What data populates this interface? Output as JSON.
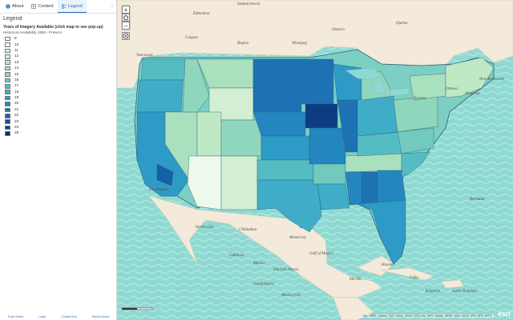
{
  "sidebar": {
    "tabs": [
      {
        "label": "About",
        "icon": "info-icon",
        "active": false
      },
      {
        "label": "Content",
        "icon": "layers-icon",
        "active": false
      },
      {
        "label": "Legend",
        "icon": "legend-icon",
        "active": true
      }
    ],
    "collapse_glyph": "‹",
    "legend_title": "Legend",
    "layer_title": "Years of Imagery Available (click map to see pop-up)",
    "layer_subtitle": "Historical Availability 1955 - Present",
    "legend_items": [
      {
        "label": "9",
        "color": "#f7fcf5"
      },
      {
        "label": "10",
        "color": "#eef9ec"
      },
      {
        "label": "11",
        "color": "#e1f4de"
      },
      {
        "label": "12",
        "color": "#d2efd1"
      },
      {
        "label": "13",
        "color": "#bfe8c4"
      },
      {
        "label": "14",
        "color": "#a9e0be"
      },
      {
        "label": "15",
        "color": "#8fd6bd"
      },
      {
        "label": "16",
        "color": "#72cabf"
      },
      {
        "label": "17",
        "color": "#56bcc4"
      },
      {
        "label": "18",
        "color": "#3fadc8"
      },
      {
        "label": "19",
        "color": "#2e9ac6"
      },
      {
        "label": "20",
        "color": "#2486bf"
      },
      {
        "label": "21",
        "color": "#1d72b4"
      },
      {
        "label": "22",
        "color": "#175fa6"
      },
      {
        "label": "23",
        "color": "#124d95"
      },
      {
        "label": "24",
        "color": "#0d3c82"
      },
      {
        "label": "25",
        "color": "#082c6c"
      }
    ],
    "footer_links": [
      "Trust Center",
      "Legal",
      "Contact Esri",
      "Report Abuse"
    ]
  },
  "map": {
    "zoom_in": "+",
    "zoom_out": "−",
    "home_icon": "home-icon",
    "locate_icon": "locate-icon",
    "attribution": "Esri, HERE, Garmin, FAO, NOAA, USGS, EPA | Esri, NPS, Garmin, HERE, NGA, USGS, EPA, NPS | AFFO",
    "logo": "esri",
    "place_labels": [
      {
        "text": "Edmonton"
      },
      {
        "text": "Saskatchewan"
      },
      {
        "text": "Calgary"
      },
      {
        "text": "Regina"
      },
      {
        "text": "Winnipeg"
      },
      {
        "text": "Ontario"
      },
      {
        "text": "Quebec"
      },
      {
        "text": "Vancouver"
      },
      {
        "text": "Montreal"
      },
      {
        "text": "New Brunswick"
      },
      {
        "text": "Ottawa"
      },
      {
        "text": "Toronto"
      },
      {
        "text": "Hermosillo"
      },
      {
        "text": "Chihuahua"
      },
      {
        "text": "Monterrey"
      },
      {
        "text": "Culiacan"
      },
      {
        "text": "Mexico"
      },
      {
        "text": "San Luis Potosi"
      },
      {
        "text": "Guadalajara"
      },
      {
        "text": "Mexico City"
      },
      {
        "text": "Havana"
      },
      {
        "text": "Cuba"
      },
      {
        "text": "Merida"
      },
      {
        "text": "Santo Domingo"
      },
      {
        "text": "Kingston"
      },
      {
        "text": "Gulf of Mexico"
      },
      {
        "text": "Bermuda"
      },
      {
        "text": "Los Angeles"
      }
    ]
  }
}
